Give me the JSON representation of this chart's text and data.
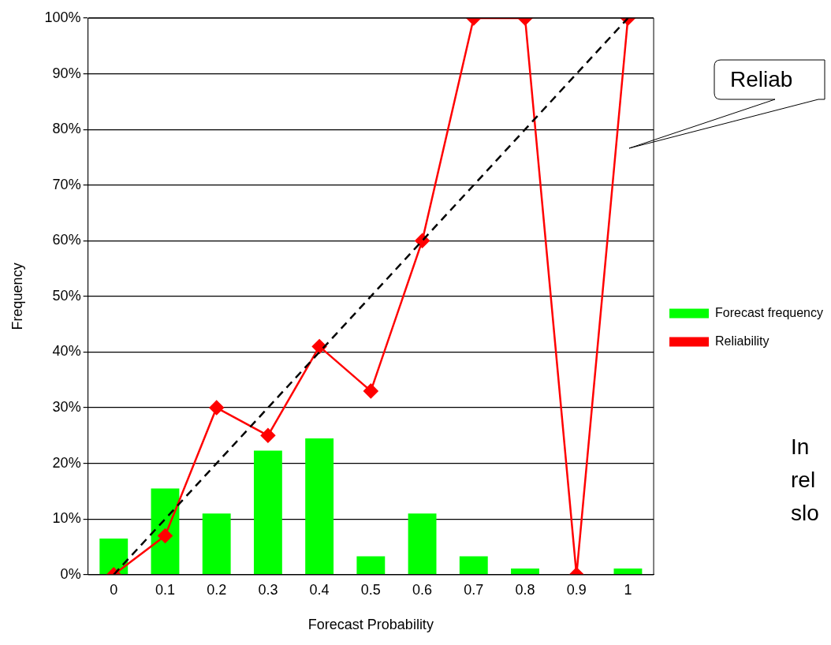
{
  "chart_data": {
    "type": "bar",
    "xlabel": "Forecast Probability",
    "ylabel": "Frequency",
    "categories": [
      "0",
      "0.1",
      "0.2",
      "0.3",
      "0.4",
      "0.5",
      "0.6",
      "0.7",
      "0.8",
      "0.9",
      "1"
    ],
    "series": [
      {
        "name": "Forecast frequency",
        "color": "#00ff00",
        "values": [
          6.5,
          15.5,
          11,
          22.3,
          24.5,
          3.3,
          11,
          3.3,
          1.1,
          0,
          1.1
        ]
      },
      {
        "name": "Reliability",
        "type": "line",
        "color": "#ff0000",
        "marker": "diamond",
        "values": [
          0,
          7,
          30,
          25,
          41,
          33,
          60,
          100,
          100,
          0,
          100
        ]
      },
      {
        "type": "line",
        "color": "#000000",
        "marker": "none",
        "line_style": "dashed",
        "values": [
          0,
          10,
          20,
          30,
          40,
          50,
          60,
          70,
          80,
          90,
          100
        ]
      }
    ],
    "ylim": [
      0,
      100
    ],
    "yticks": [
      {
        "value": 0,
        "label": "0%"
      },
      {
        "value": 10,
        "label": "10%"
      },
      {
        "value": 20,
        "label": "20%"
      },
      {
        "value": 30,
        "label": "30%"
      },
      {
        "value": 40,
        "label": "40%"
      },
      {
        "value": 50,
        "label": "50%"
      },
      {
        "value": 60,
        "label": "60%"
      },
      {
        "value": 70,
        "label": "70%"
      },
      {
        "value": 80,
        "label": "80%"
      },
      {
        "value": 90,
        "label": "90%"
      },
      {
        "value": 100,
        "label": "100%"
      }
    ],
    "grid": "y",
    "legend": "right",
    "annotations": [
      "Reliab",
      "In",
      "rel",
      "slo"
    ]
  }
}
